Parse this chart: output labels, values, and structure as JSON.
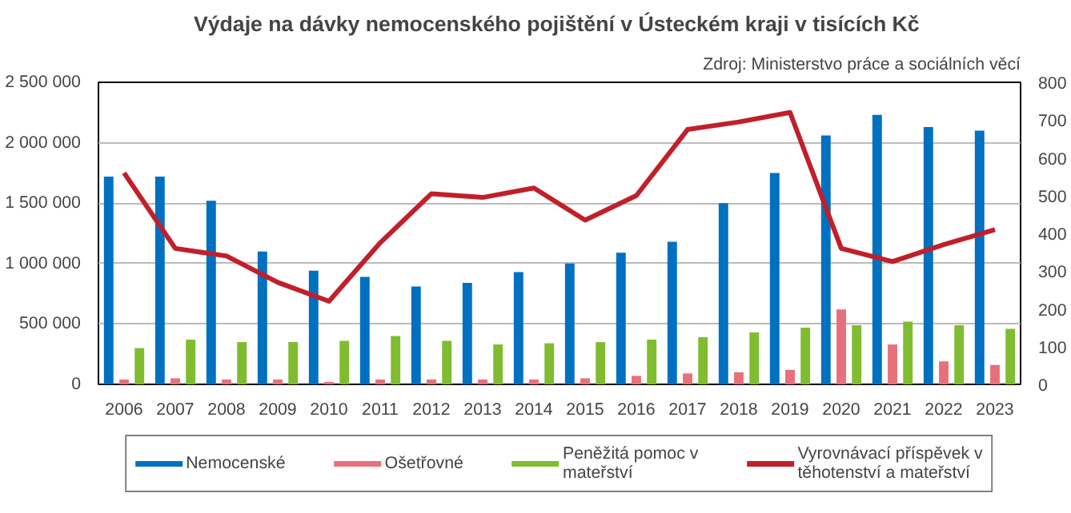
{
  "chart_data": {
    "type": "bar",
    "title": "Výdaje na dávky nemocenského pojištění v Ústeckém  kraji v tisících Kč",
    "annotations": [
      "Zdroj: Ministerstvo práce a sociálních věcí"
    ],
    "categories": [
      "2006",
      "2007",
      "2008",
      "2009",
      "2010",
      "2011",
      "2012",
      "2013",
      "2014",
      "2015",
      "2016",
      "2017",
      "2018",
      "2019",
      "2020",
      "2021",
      "2022",
      "2023"
    ],
    "series": [
      {
        "name": "Nemocenské",
        "color": "#0070c0",
        "values": [
          1720000,
          1720000,
          1520000,
          1100000,
          940000,
          890000,
          810000,
          840000,
          930000,
          1000000,
          1090000,
          1180000,
          1500000,
          1750000,
          2060000,
          2230000,
          2130000,
          2100000
        ]
      },
      {
        "name": "Ošetřovné",
        "color": "#e8707a",
        "values": [
          40000,
          50000,
          40000,
          40000,
          20000,
          40000,
          40000,
          40000,
          40000,
          50000,
          70000,
          90000,
          100000,
          120000,
          620000,
          330000,
          190000,
          160000
        ]
      },
      {
        "name": "Peněžitá pomoc v mateřství",
        "color": "#80bc30",
        "values": [
          300000,
          370000,
          350000,
          350000,
          360000,
          400000,
          360000,
          330000,
          340000,
          350000,
          370000,
          390000,
          430000,
          470000,
          490000,
          520000,
          490000,
          460000
        ]
      },
      {
        "name": "Vyrovnávací příspěvek v těhotenství a mateřství",
        "color": "#c0202a",
        "type": "line",
        "axis": "y2",
        "values": [
          560,
          360,
          340,
          270,
          220,
          375,
          505,
          495,
          520,
          435,
          500,
          675,
          695,
          720,
          360,
          325,
          370,
          410
        ]
      }
    ],
    "ylim": [
      0,
      2500000
    ],
    "yticks": [
      0,
      {
        "value": 500000,
        "label": "500 000"
      },
      {
        "value": 1000000,
        "label": "1 000 000"
      },
      {
        "value": 1500000,
        "label": "1 500 000"
      },
      {
        "value": 2000000,
        "label": "2 000 000"
      },
      {
        "value": 2500000,
        "label": "2 500 000"
      }
    ],
    "y2lim": [
      0,
      800
    ],
    "y2ticks": [
      0,
      100,
      200,
      300,
      400,
      500,
      600,
      700,
      800
    ],
    "grid": "y",
    "legend": "bottom",
    "marker": "none",
    "line_style": "solid"
  }
}
